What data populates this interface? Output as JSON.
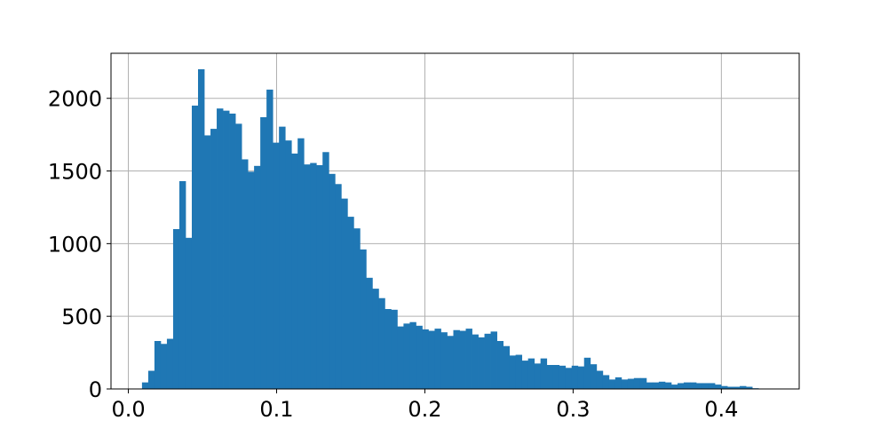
{
  "chart_data": {
    "type": "bar",
    "subtype": "histogram",
    "bar_color": "#1f77b4",
    "grid": true,
    "xlim": [
      -0.0117,
      0.4525
    ],
    "ylim": [
      0,
      2310
    ],
    "xticks": [
      {
        "value": 0.0,
        "label": "0.0"
      },
      {
        "value": 0.1,
        "label": "0.1"
      },
      {
        "value": 0.2,
        "label": "0.2"
      },
      {
        "value": 0.3,
        "label": "0.3"
      },
      {
        "value": 0.4,
        "label": "0.4"
      }
    ],
    "yticks": [
      {
        "value": 0,
        "label": "0"
      },
      {
        "value": 500,
        "label": "500"
      },
      {
        "value": 1000,
        "label": "1000"
      },
      {
        "value": 1500,
        "label": "1500"
      },
      {
        "value": 2000,
        "label": "2000"
      }
    ],
    "bin_start": 0.0092,
    "bin_width": 0.0042,
    "counts": [
      45,
      125,
      330,
      310,
      345,
      1100,
      1430,
      1040,
      1950,
      2200,
      1745,
      1790,
      1930,
      1915,
      1895,
      1825,
      1580,
      1495,
      1535,
      1870,
      2060,
      1695,
      1805,
      1710,
      1620,
      1725,
      1545,
      1555,
      1540,
      1630,
      1480,
      1410,
      1310,
      1185,
      1105,
      960,
      765,
      690,
      625,
      550,
      545,
      430,
      450,
      460,
      435,
      410,
      400,
      415,
      390,
      365,
      405,
      400,
      415,
      375,
      355,
      380,
      395,
      330,
      295,
      230,
      235,
      195,
      210,
      175,
      210,
      165,
      165,
      160,
      145,
      160,
      155,
      215,
      170,
      125,
      95,
      65,
      80,
      65,
      70,
      75,
      75,
      45,
      45,
      50,
      45,
      30,
      40,
      45,
      45,
      40,
      40,
      40,
      30,
      20,
      15,
      15,
      20,
      15,
      5
    ]
  }
}
